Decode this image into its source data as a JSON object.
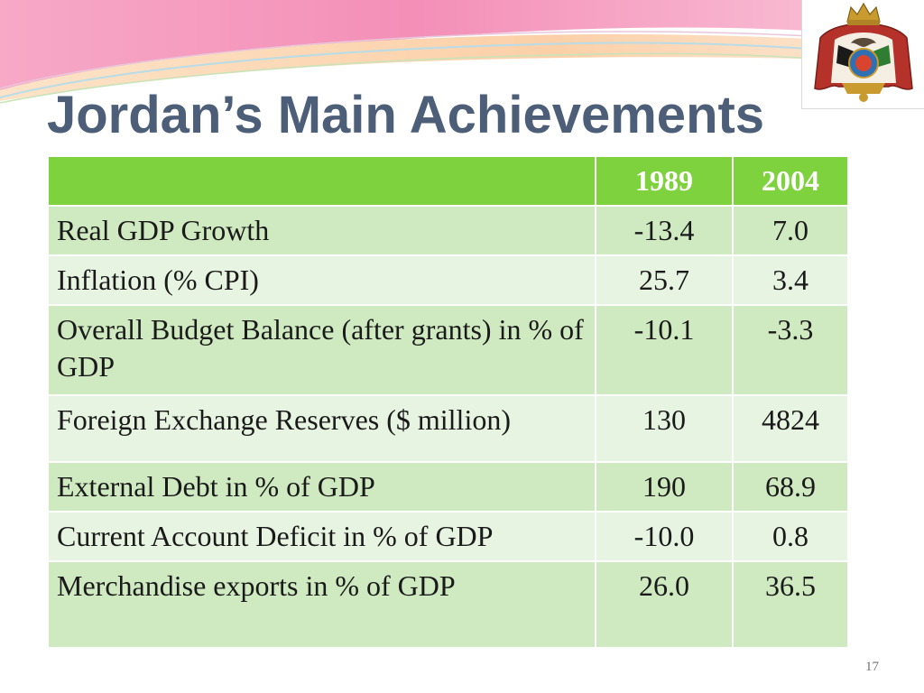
{
  "slide": {
    "title": "Jordan’s Main Achievements",
    "page_number": "17",
    "emblem": "jordan-coat-of-arms-icon",
    "colors": {
      "title": "#4d5e78",
      "header_fill": "#7ed23e",
      "row_dark": "#cfeac0",
      "row_light": "#e8f4e2"
    }
  },
  "table": {
    "columns": [
      "",
      "1989",
      "2004"
    ],
    "rows": [
      {
        "label": "Real GDP Growth",
        "y1989": "-13.4",
        "y2004": "7.0"
      },
      {
        "label": "Inflation (% CPI)",
        "y1989": "25.7",
        "y2004": "3.4"
      },
      {
        "label": "Overall Budget Balance (after grants) in % of GDP",
        "y1989": "-10.1",
        "y2004": "-3.3"
      },
      {
        "label": "Foreign Exchange Reserves ($ million)",
        "y1989": "130",
        "y2004": "4824"
      },
      {
        "label": "External Debt in % of GDP",
        "y1989": "190",
        "y2004": "68.9"
      },
      {
        "label": "Current Account Deficit in % of GDP",
        "y1989": "-10.0",
        "y2004": "0.8"
      },
      {
        "label": "Merchandise exports in % of GDP",
        "y1989": "26.0",
        "y2004": "36.5"
      }
    ]
  }
}
